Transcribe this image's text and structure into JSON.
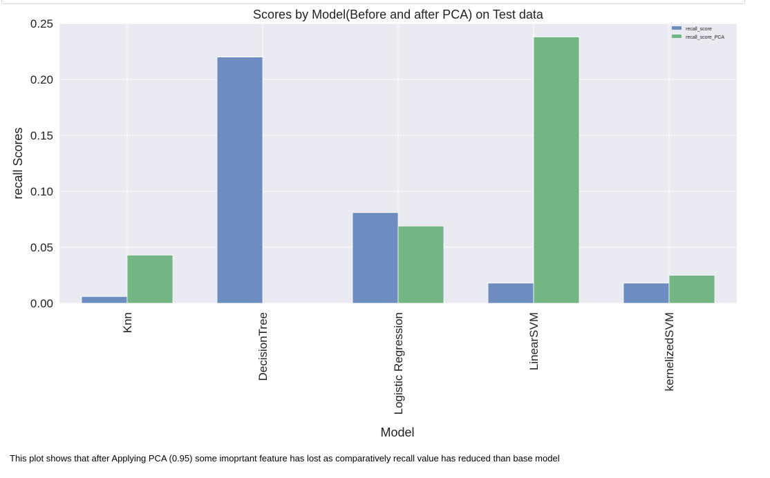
{
  "caption": "This plot shows that after Applying PCA (0.95) some imoprtant feature has lost as comparatively recall value has reduced than base model",
  "colors": {
    "plot_background": "#eaeaf2",
    "grid": "#ffffff",
    "series_1": "#6d8cc0",
    "series_2": "#74b683",
    "text": "#222222"
  },
  "chart_data": {
    "type": "bar",
    "title": "Scores by Model(Before and after PCA) on Test data",
    "xlabel": "Model",
    "ylabel": "recall Scores",
    "ylim": [
      0,
      0.25
    ],
    "yticks": [
      "0.00",
      "0.05",
      "0.10",
      "0.15",
      "0.20",
      "0.25"
    ],
    "categories": [
      "Knn",
      "DecisionTree",
      "Logistic Regression",
      "LinearSVM",
      "kernelizedSVM"
    ],
    "series": [
      {
        "name": "recall_score",
        "values": [
          0.006,
          0.22,
          0.081,
          0.018,
          0.018
        ]
      },
      {
        "name": "recall_score_PCA",
        "values": [
          0.043,
          0.0,
          0.069,
          0.238,
          0.025
        ]
      }
    ],
    "grid": true,
    "legend_position": "top-right",
    "x_tick_rotation": "vertical"
  }
}
